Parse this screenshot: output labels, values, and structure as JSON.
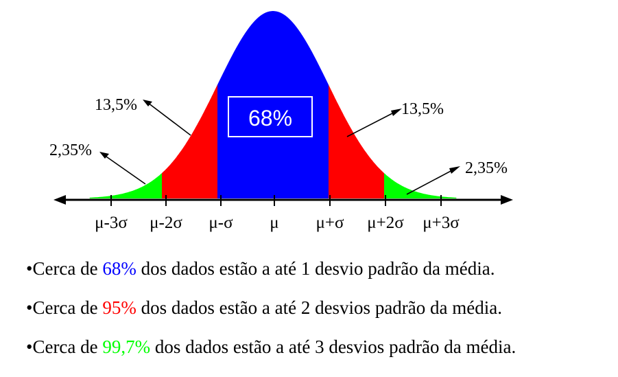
{
  "diagram": {
    "center_label": "68%",
    "ticks": [
      "μ-3σ",
      "μ-2σ",
      "μ-σ",
      "μ",
      "μ+σ",
      "μ+2σ",
      "μ+3σ"
    ],
    "regions": [
      {
        "name": "inner-1sd",
        "color": "#0000ff",
        "range_sd": [
          -1,
          1
        ]
      },
      {
        "name": "band-1-2sd",
        "color": "#ff0000",
        "range_sd": [
          1,
          2
        ]
      },
      {
        "name": "band-2-3sd",
        "color": "#00ff00",
        "range_sd": [
          2,
          3
        ]
      }
    ],
    "annotations": {
      "left_13": "13,5%",
      "left_235": "2,35%",
      "right_13": "13,5%",
      "right_235": "2,35%"
    }
  },
  "notes": [
    {
      "bullet": "•",
      "prefix": "Cerca de ",
      "value": "68%",
      "value_color": "#0000ff",
      "suffix": " dos dados estão a até 1 desvio padrão da média."
    },
    {
      "bullet": "•",
      "prefix": "Cerca de ",
      "value": "95%",
      "value_color": "#ff0000",
      "suffix": " dos dados estão a até 2 desvios padrão da média."
    },
    {
      "bullet": "•",
      "prefix": "Cerca de ",
      "value": "99,7%",
      "value_color": "#00ff00",
      "suffix": " dos dados estão a até 3 desvios padrão da média."
    }
  ]
}
